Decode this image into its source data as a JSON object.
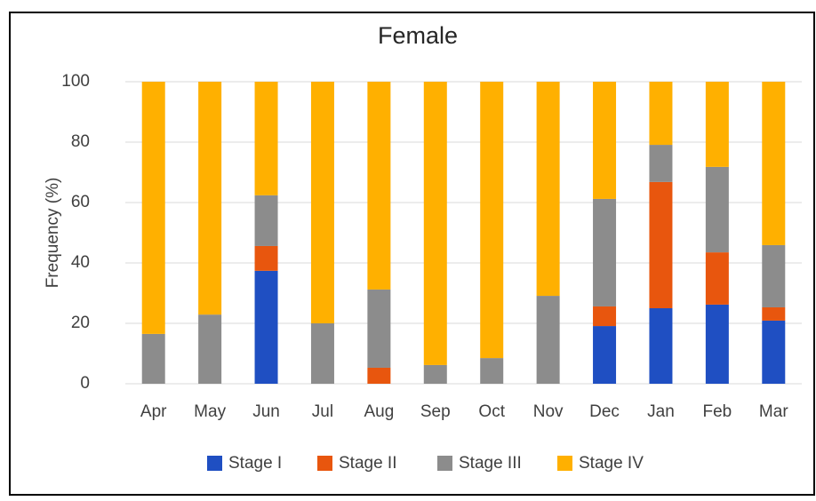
{
  "chart_data": {
    "type": "stacked_bar",
    "title": "Female",
    "y_label": "Frequency (%)",
    "categories": [
      "Apr",
      "May",
      "Jun",
      "Jul",
      "Aug",
      "Sep",
      "Oct",
      "Nov",
      "Dec",
      "Jan",
      "Feb",
      "Mar"
    ],
    "series": [
      {
        "name": "Stage I",
        "color": "#1f4fc2",
        "values": [
          0,
          0,
          37.4,
          0,
          0,
          0,
          0,
          0,
          19.1,
          25,
          26.2,
          20.9
        ]
      },
      {
        "name": "Stage II",
        "color": "#e8560e",
        "values": [
          0,
          0,
          8.2,
          0,
          5.3,
          0,
          0,
          0,
          6.5,
          41.8,
          17.3,
          4.4
        ]
      },
      {
        "name": "Stage III",
        "color": "#8c8c8c",
        "values": [
          16.5,
          22.9,
          16.8,
          20,
          25.9,
          6.2,
          8.5,
          29.1,
          35.6,
          12.3,
          28.3,
          20.6
        ]
      },
      {
        "name": "Stage IV",
        "color": "#ffb000",
        "values": [
          83.5,
          77.1,
          37.6,
          80,
          68.8,
          93.8,
          91.5,
          70.9,
          38.8,
          20.9,
          28.2,
          54.1
        ]
      }
    ],
    "ylim": [
      0,
      100
    ],
    "yticks": [
      0,
      20,
      40,
      60,
      80,
      100
    ],
    "grid": true,
    "legend": "bottom"
  }
}
